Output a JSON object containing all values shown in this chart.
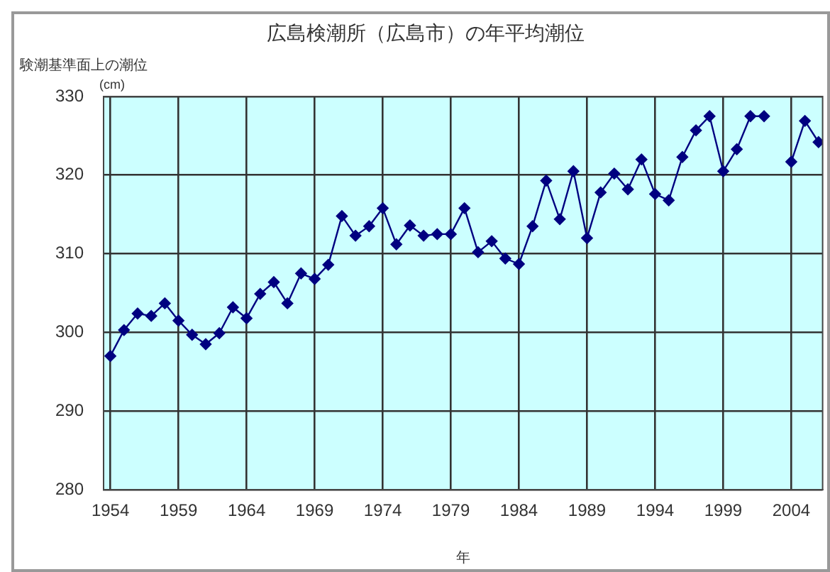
{
  "chart_data": {
    "type": "line",
    "title": "広島検潮所（広島市）の年平均潮位",
    "ylabel": "験潮基準面上の潮位",
    "xlabel": "年",
    "annotations": [
      "(cm)"
    ],
    "x": [
      1954,
      1955,
      1956,
      1957,
      1958,
      1959,
      1960,
      1961,
      1962,
      1963,
      1964,
      1965,
      1966,
      1967,
      1968,
      1969,
      1970,
      1971,
      1972,
      1973,
      1974,
      1975,
      1976,
      1977,
      1978,
      1979,
      1980,
      1981,
      1982,
      1983,
      1984,
      1985,
      1986,
      1987,
      1988,
      1989,
      1990,
      1991,
      1992,
      1993,
      1994,
      1995,
      1996,
      1997,
      1998,
      1999,
      2000,
      2001,
      2002,
      2003,
      2004,
      2005,
      2006
    ],
    "series": [
      {
        "color": "#000080",
        "values": [
          297.0,
          300.3,
          302.4,
          302.1,
          303.7,
          301.5,
          299.7,
          298.5,
          299.9,
          303.2,
          301.8,
          304.9,
          306.4,
          303.7,
          307.5,
          306.8,
          308.6,
          314.8,
          312.3,
          313.5,
          315.8,
          311.2,
          313.6,
          312.3,
          312.5,
          312.5,
          315.8,
          310.2,
          311.6,
          309.4,
          308.7,
          313.5,
          319.3,
          314.4,
          320.5,
          312.0,
          317.8,
          320.2,
          318.2,
          322.0,
          317.6,
          316.8,
          322.3,
          325.7,
          327.5,
          320.5,
          323.3,
          327.5,
          327.5,
          null,
          321.7,
          326.9,
          324.2
        ]
      }
    ],
    "xlim": [
      1953.5,
      2006.3
    ],
    "xticks": [
      1954,
      1959,
      1964,
      1969,
      1974,
      1979,
      1984,
      1989,
      1994,
      1999,
      2004
    ],
    "ylim": [
      280,
      330
    ],
    "yticks": [
      280,
      290,
      300,
      310,
      320,
      330
    ],
    "grid": true,
    "legend": false,
    "marker": "diamond",
    "line_style": "solid"
  }
}
